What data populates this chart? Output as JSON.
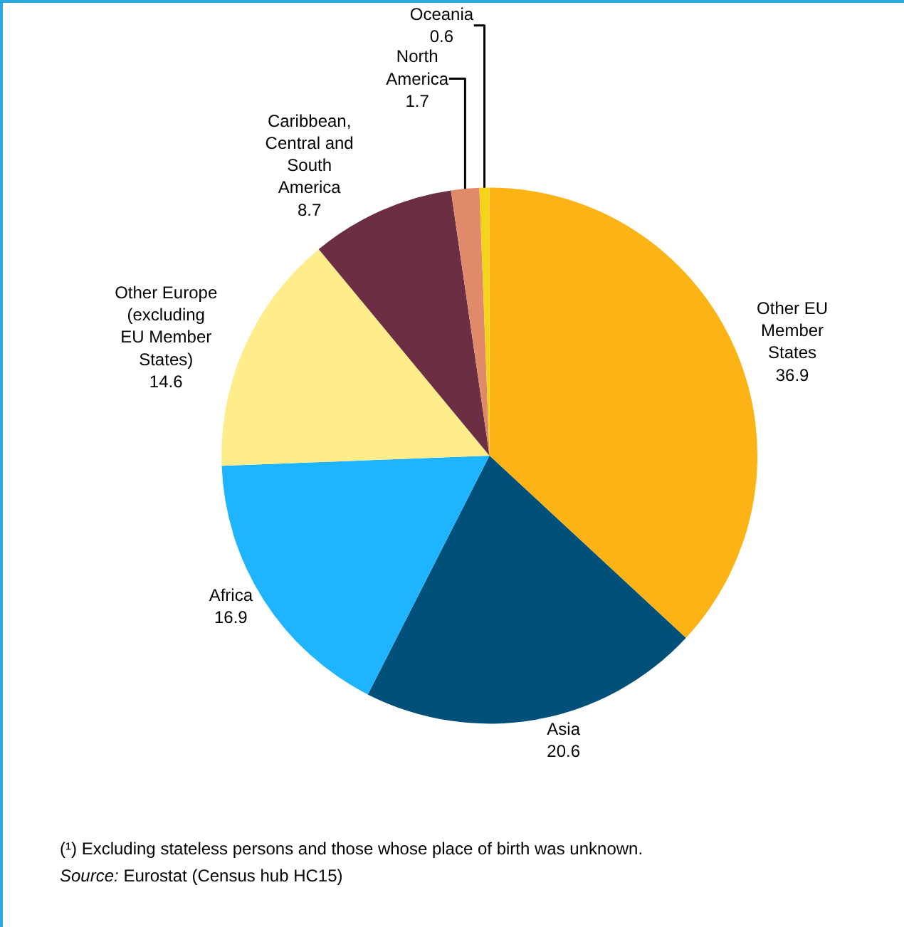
{
  "chart_data": {
    "type": "pie",
    "categories": [
      "Other EU Member States",
      "Asia",
      "Africa",
      "Other Europe (excluding EU Member States)",
      "Caribbean, Central and South America",
      "North America",
      "Oceania"
    ],
    "values": [
      36.9,
      20.6,
      16.9,
      14.6,
      8.7,
      1.7,
      0.6
    ],
    "colors": [
      "#fbb316",
      "#00507a",
      "#1eb4ff",
      "#ffec8b",
      "#6b2e43",
      "#e08a6a",
      "#f5d31a"
    ],
    "data_labels": true,
    "legend": false,
    "annotations": [
      "(¹) Excluding stateless persons and those whose place of birth was unknown.",
      "Source: Eurostat (Census hub HC15)"
    ]
  }
}
